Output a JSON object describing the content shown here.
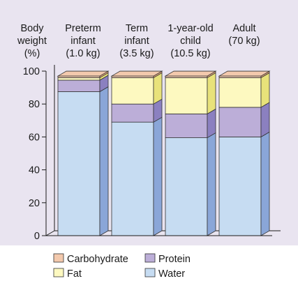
{
  "chart_data": {
    "type": "bar",
    "stacked": true,
    "ylabel_lines": [
      "Body",
      "weight",
      "(%)"
    ],
    "ylim": [
      0,
      100
    ],
    "yticks": [
      0,
      20,
      40,
      60,
      80,
      100
    ],
    "categories": [
      {
        "lines": [
          "Preterm",
          "infant",
          "(1.0 kg)"
        ]
      },
      {
        "lines": [
          "Term",
          "infant",
          "(3.5 kg)"
        ]
      },
      {
        "lines": [
          "1-year-old",
          "child",
          "(10.5 kg)"
        ]
      },
      {
        "lines": [
          "Adult",
          "(70 kg)"
        ]
      }
    ],
    "series": [
      {
        "name": "Water",
        "values": [
          87.5,
          69,
          59.5,
          60
        ],
        "color": "#c6dcf2",
        "side": "#8aa6d8"
      },
      {
        "name": "Protein",
        "values": [
          7,
          11,
          14.5,
          18
        ],
        "color": "#bcaed8",
        "side": "#8b80c0"
      },
      {
        "name": "Fat",
        "values": [
          1.5,
          16,
          22,
          18
        ],
        "color": "#fdf9c0",
        "side": "#e8e27a"
      },
      {
        "name": "Carbohydrate",
        "values": [
          1,
          1,
          1,
          1
        ],
        "color": "#f3c9ad",
        "side": "#e4a57a"
      }
    ],
    "legend": {
      "placement": "bottom",
      "rows": [
        [
          "Carbohydrate",
          "Protein"
        ],
        [
          "Fat",
          "Water"
        ]
      ]
    },
    "grid": false
  }
}
